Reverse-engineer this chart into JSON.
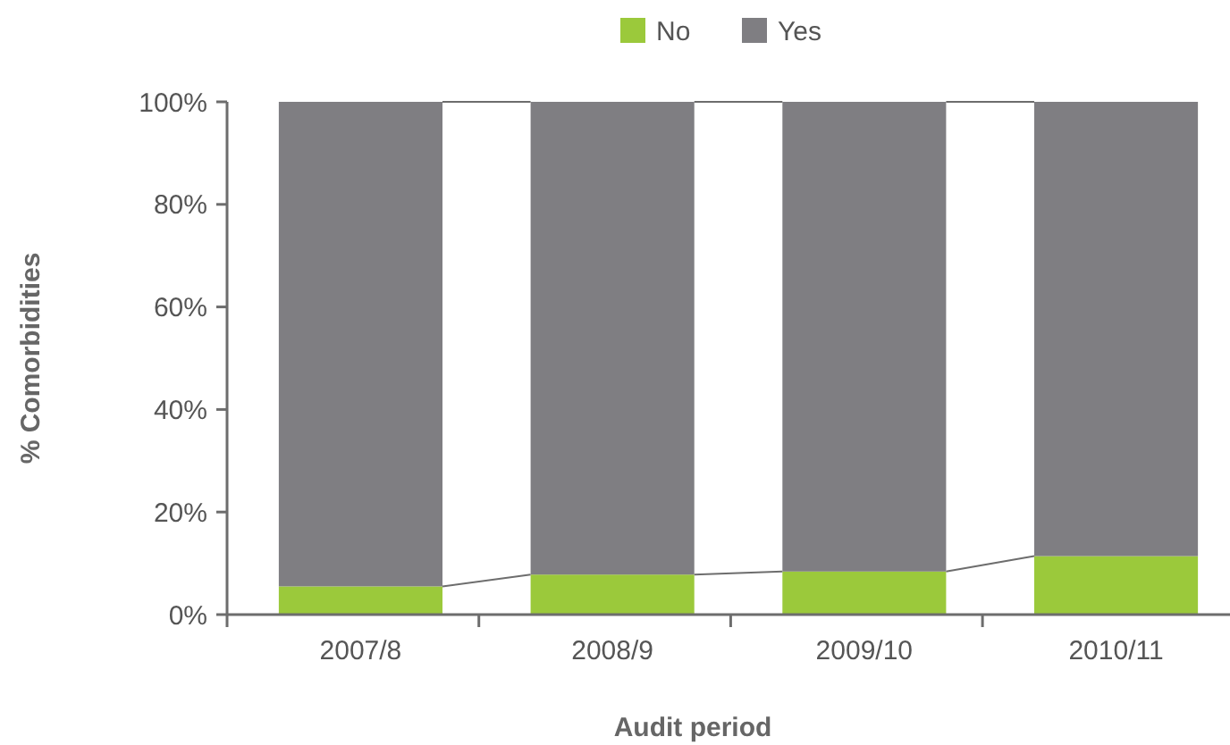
{
  "chart_data": {
    "type": "bar",
    "stacked": true,
    "xlabel": "Audit period",
    "ylabel": "% Comorbidities",
    "categories": [
      "2007/8",
      "2008/9",
      "2009/10",
      "2010/11"
    ],
    "series": [
      {
        "name": "No",
        "color": "#9bc93b",
        "values": [
          5.5,
          7.8,
          8.4,
          11.4
        ]
      },
      {
        "name": "Yes",
        "color": "#7f7e82",
        "values": [
          94.5,
          92.2,
          91.6,
          88.6
        ]
      }
    ],
    "ylim": [
      0,
      100
    ],
    "yticks": [
      {
        "value": 0,
        "label": "0%"
      },
      {
        "value": 20,
        "label": "20%"
      },
      {
        "value": 40,
        "label": "40%"
      },
      {
        "value": 60,
        "label": "60%"
      },
      {
        "value": 80,
        "label": "80%"
      },
      {
        "value": 100,
        "label": "100%"
      }
    ],
    "legend": "top",
    "grid": false
  }
}
